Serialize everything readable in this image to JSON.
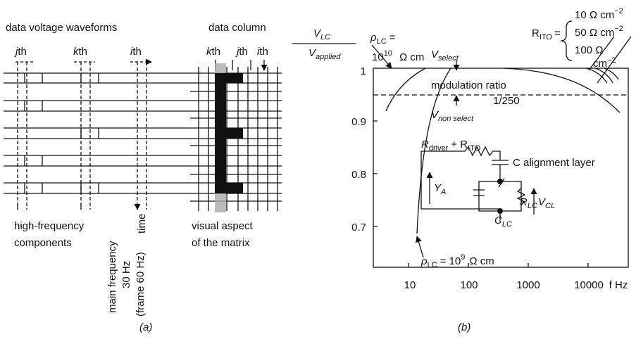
{
  "panel_a": {
    "title": "data voltage waveforms",
    "column_title": "data column",
    "waveform_labels": [
      {
        "letter": "j",
        "suffix": "th"
      },
      {
        "letter": "k",
        "suffix": "th"
      },
      {
        "letter": "i",
        "suffix": "th"
      }
    ],
    "column_labels": [
      {
        "letter": "k",
        "suffix": "th"
      },
      {
        "letter": "j",
        "suffix": "th"
      },
      {
        "letter": "i",
        "suffix": "th"
      }
    ],
    "high_frequency": [
      "high-frequency",
      "components"
    ],
    "time": "time",
    "main_frequency": [
      "main frequency",
      "30 Hz",
      "(frame 60 Hz)"
    ],
    "visual_aspect": [
      "visual aspect",
      "of the matrix"
    ],
    "caption": "(a)"
  },
  "panel_b": {
    "y_label": {
      "num": "V",
      "num_sub": "LC",
      "den": "V",
      "den_sub": "applied"
    },
    "rho_high": {
      "symbol": "ρ",
      "sub": "LC",
      "eq": "=",
      "base": "10",
      "exp": "10",
      "unit": "Ω cm"
    },
    "rho_low": {
      "symbol": "ρ",
      "sub": "LC",
      "eq": "= 10",
      "exp": "9",
      "unit": "Ω cm"
    },
    "r_ito": {
      "symbol": "R",
      "sub": "ITO",
      "eq": "=",
      "lines": [
        "10 Ω cm",
        "50 Ω cm",
        "100 Ω"
      ],
      "exp": "−2",
      "last_unit": "cm",
      "last_exp": "−2"
    },
    "v_select": {
      "symbol": "V",
      "sub": "select"
    },
    "modulation_ratio": "modulation ratio",
    "ratio": "1/250",
    "v_non_select": {
      "symbol": "V",
      "sub": "non select"
    },
    "circuit": {
      "r_driver": "R",
      "r_driver_sub": "driver",
      "plus": "+ R",
      "r_ito_sub": "ITO",
      "c_alignment": "C alignment layer",
      "y_a": "Y",
      "y_a_sub": "A",
      "r_lc": "R",
      "r_lc_sub": "LC",
      "v_cl": "V",
      "v_cl_sub": "CL",
      "c_lc": "C",
      "c_lc_sub": "LC"
    },
    "y_tick_labels": [
      "1",
      "0.9",
      "0.8",
      "0.7"
    ],
    "x_tick_labels": [
      "10",
      "100",
      "1000",
      "10000"
    ],
    "x_unit": "f Hz",
    "caption": "(b)"
  }
}
